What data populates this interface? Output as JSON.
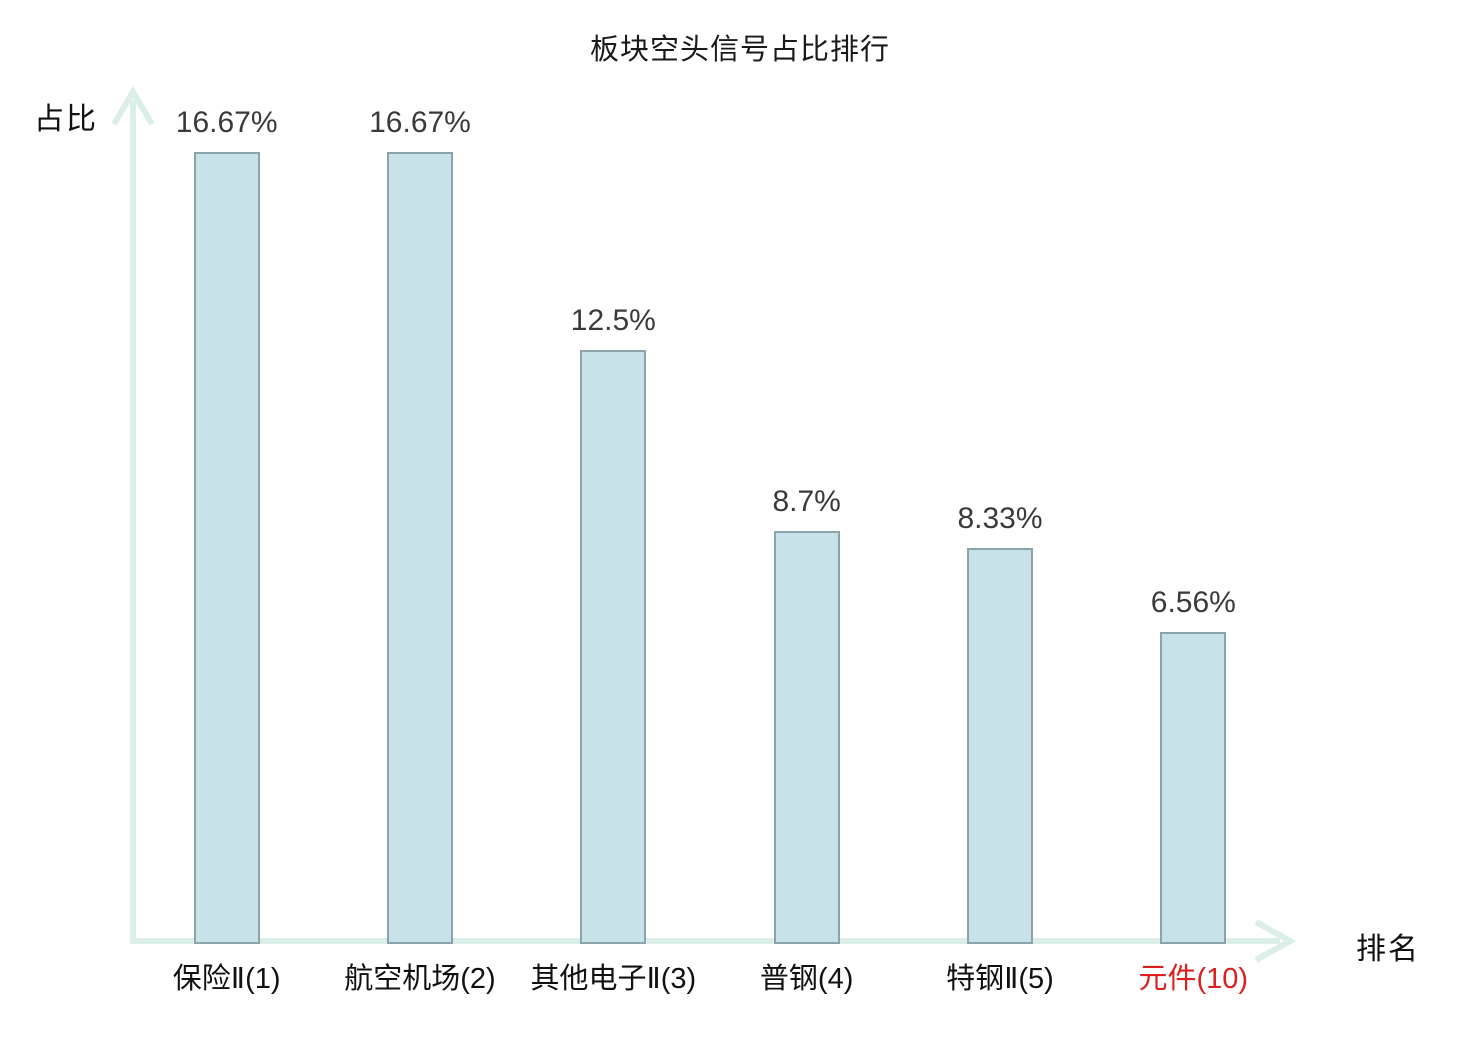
{
  "title": "板块空头信号占比排行",
  "y_axis_label": "占比",
  "x_axis_label": "排名",
  "colors": {
    "bar_fill": "#c7e3e8",
    "bar_border": "#8ba4ab",
    "axis": "#dbeee9",
    "value_label": "#3a3a3a",
    "category_label": "#111111",
    "highlight_label": "#dc2020"
  },
  "chart_data": {
    "type": "bar",
    "title": "板块空头信号占比排行",
    "xlabel": "排名",
    "ylabel": "占比",
    "categories": [
      "保险Ⅱ(1)",
      "航空机场(2)",
      "其他电子Ⅱ(3)",
      "普钢(4)",
      "特钢Ⅱ(5)",
      "元件(10)"
    ],
    "values": [
      16.67,
      16.67,
      12.5,
      8.7,
      8.33,
      6.56
    ],
    "value_labels": [
      "16.67%",
      "16.67%",
      "12.5%",
      "8.7%",
      "8.33%",
      "6.56%"
    ],
    "highlight_index": 5,
    "ylim": [
      0,
      17.8
    ],
    "grid": false,
    "legend": null,
    "bar_orientation": "vertical"
  }
}
